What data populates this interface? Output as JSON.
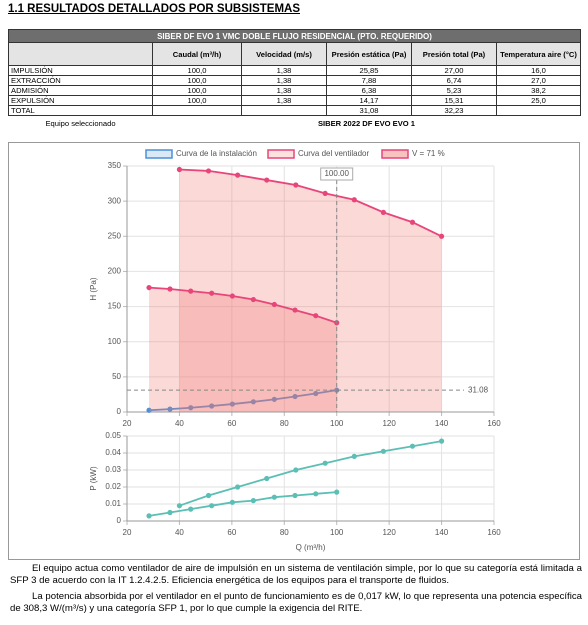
{
  "heading": "1.1 RESULTADOS DETALLADOS POR SUBSISTEMAS",
  "table": {
    "title": "SIBER DF EVO 1 VMC DOBLE FLUJO RESIDENCIAL (PTO. REQUERIDO)",
    "header": [
      "Caudal (m³/h)",
      "Velocidad (m/s)",
      "Presión estática (Pa)",
      "Presión total (Pa)",
      "Temperatura aire (°C)"
    ],
    "rows": [
      [
        "IMPULSIÓN",
        "100,0",
        "1,38",
        "25,85",
        "27,00",
        "16,0"
      ],
      [
        "EXTRACCIÓN",
        "100,0",
        "1,38",
        "7,88",
        "6,74",
        "27,0"
      ],
      [
        "ADMISIÓN",
        "100,0",
        "1,38",
        "6,38",
        "5,23",
        "38,2"
      ],
      [
        "EXPULSIÓN",
        "100,0",
        "1,38",
        "14,17",
        "15,31",
        "25,0"
      ],
      [
        "TOTAL",
        null,
        null,
        "31,08",
        "32,23",
        null
      ]
    ],
    "footer": {
      "label": "Equipo seleccionado",
      "value": "SIBER 2022 DF EVO EVO 1"
    }
  },
  "chart_data": [
    {
      "type": "line",
      "ylabel": "H (Pa)",
      "xlim": [
        20,
        160
      ],
      "xticks": [
        20,
        40,
        60,
        80,
        100,
        120,
        140,
        160
      ],
      "ylim": [
        0,
        350
      ],
      "yticks": [
        0,
        50,
        100,
        150,
        200,
        250,
        300,
        350
      ],
      "grid": true,
      "series": [
        {
          "name": "Curva de la instalación",
          "color": "#4a90d9",
          "fill": false,
          "x": [
            28.4,
            36.4,
            44.3,
            52.3,
            60.2,
            68.2,
            76.2,
            84.1,
            92.0,
            100
          ],
          "values": [
            2.5,
            4.1,
            6.1,
            8.5,
            11.3,
            14.5,
            18.0,
            22.0,
            26.3,
            31.08
          ]
        },
        {
          "name": "Curva del ventilador",
          "color": "#e8457a",
          "fill": true,
          "x": [
            40,
            51.1,
            62.2,
            73.3,
            84.4,
            95.6,
            106.7,
            117.8,
            128.9,
            140
          ],
          "values": [
            345,
            343,
            337,
            330,
            323,
            311,
            302,
            284,
            270,
            250
          ]
        },
        {
          "name": "V = 71 %",
          "color": "#e8457a",
          "fill": true,
          "x": [
            28.4,
            36.4,
            44.3,
            52.3,
            60.2,
            68.2,
            76.2,
            84.1,
            92.0,
            100
          ],
          "values": [
            177,
            175,
            172,
            169,
            165,
            160,
            153,
            145,
            137,
            127
          ]
        }
      ],
      "annotations": [
        {
          "x": 100,
          "label": "100.00"
        },
        {
          "y": 31.08,
          "label": "31.08"
        }
      ]
    },
    {
      "type": "line",
      "ylabel": "P (kW)",
      "xlabel": "Q (m³/h)",
      "xlim": [
        20,
        160
      ],
      "xticks": [
        20,
        40,
        60,
        80,
        100,
        120,
        140,
        160
      ],
      "ylim": [
        0,
        0.05
      ],
      "yticks": [
        0,
        0.01,
        0.02,
        0.03,
        0.04,
        0.05
      ],
      "grid": true,
      "series": [
        {
          "color": "#5bbfb5",
          "fill": false,
          "x": [
            40,
            51.1,
            62.2,
            73.3,
            84.4,
            95.6,
            106.7,
            117.8,
            128.9,
            140
          ],
          "values": [
            0.009,
            0.015,
            0.02,
            0.025,
            0.03,
            0.034,
            0.038,
            0.041,
            0.044,
            0.047
          ]
        },
        {
          "color": "#5bbfb5",
          "fill": false,
          "x": [
            28.4,
            36.4,
            44.3,
            52.3,
            60.2,
            68.2,
            76.2,
            84.1,
            92.0,
            100
          ],
          "values": [
            0.003,
            0.005,
            0.007,
            0.009,
            0.011,
            0.012,
            0.014,
            0.015,
            0.016,
            0.017
          ]
        }
      ]
    }
  ],
  "paragraphs": [
    "El equipo actua como ventilador de aire de impulsión en un sistema de ventilación simple, por lo que su categoría está limitada a SFP 3 de acuerdo con la IT 1.2.4.2.5. Eficiencia energética de los equipos para el transporte de fluidos.",
    "La potencia absorbida por el ventilador en el punto de funcionamiento es de 0,017 kW, lo que representa una potencia específica de 308,3 W/(m³/s) y una categoría SFP 1, por lo que cumple la exigencia del RITE."
  ]
}
